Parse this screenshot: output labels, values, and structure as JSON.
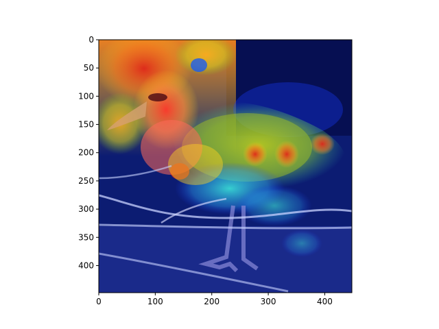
{
  "image": {
    "subject": "seabird-heatmap-overlay",
    "colormap": "jet",
    "colors": {
      "background_dark": "#0a1a6e",
      "hot": "#ff2a1a",
      "warm": "#ffd21e",
      "mid": "#2ee6d6",
      "cool": "#1a3cff"
    }
  },
  "axes": {
    "x_range": [
      0,
      448
    ],
    "y_range": [
      448,
      0
    ],
    "x_ticks": [
      "0",
      "100",
      "200",
      "300",
      "400"
    ],
    "x_tick_values": [
      0,
      100,
      200,
      300,
      400
    ],
    "y_ticks": [
      "0",
      "50",
      "100",
      "150",
      "200",
      "250",
      "300",
      "350",
      "400"
    ],
    "y_tick_values": [
      0,
      50,
      100,
      150,
      200,
      250,
      300,
      350,
      400
    ]
  }
}
